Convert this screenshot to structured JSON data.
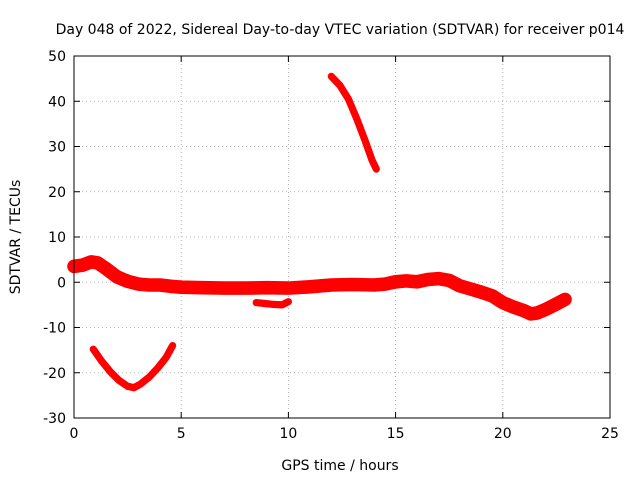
{
  "chart_data": {
    "type": "line",
    "title": "Day 048 of 2022, Sidereal Day-to-day VTEC variation (SDTVAR) for receiver p014",
    "xlabel": "GPS time / hours",
    "ylabel": "SDTVAR / TECUs",
    "xlim": [
      0,
      25
    ],
    "ylim": [
      -30,
      50
    ],
    "xticks": [
      0,
      5,
      10,
      15,
      20,
      25
    ],
    "yticks": [
      -30,
      -20,
      -10,
      0,
      10,
      20,
      30,
      40,
      50
    ],
    "grid": true,
    "color": "#ff0000",
    "series": [
      {
        "name": "main",
        "thickness": 3,
        "points": [
          [
            0,
            3.5
          ],
          [
            0.4,
            3.8
          ],
          [
            0.8,
            4.5
          ],
          [
            1.1,
            4.3
          ],
          [
            1.5,
            3.0
          ],
          [
            2.0,
            1.2
          ],
          [
            2.5,
            0.2
          ],
          [
            3.0,
            -0.4
          ],
          [
            3.5,
            -0.6
          ],
          [
            4.0,
            -0.6
          ],
          [
            4.5,
            -0.9
          ],
          [
            5.0,
            -1.1
          ],
          [
            6.0,
            -1.2
          ],
          [
            7.0,
            -1.3
          ],
          [
            8.0,
            -1.3
          ],
          [
            9.0,
            -1.2
          ],
          [
            10.0,
            -1.3
          ],
          [
            11.0,
            -1.0
          ],
          [
            12.0,
            -0.6
          ],
          [
            13.0,
            -0.5
          ],
          [
            14.0,
            -0.6
          ],
          [
            14.5,
            -0.4
          ],
          [
            15.0,
            0.1
          ],
          [
            15.5,
            0.3
          ],
          [
            16.0,
            0.1
          ],
          [
            16.5,
            0.6
          ],
          [
            17.0,
            0.8
          ],
          [
            17.5,
            0.4
          ],
          [
            18.0,
            -0.8
          ],
          [
            18.5,
            -1.5
          ],
          [
            19.0,
            -2.2
          ],
          [
            19.5,
            -3.0
          ],
          [
            20.0,
            -4.5
          ],
          [
            20.5,
            -5.5
          ],
          [
            21.0,
            -6.3
          ],
          [
            21.3,
            -7.0
          ],
          [
            21.6,
            -6.8
          ],
          [
            22.0,
            -6.0
          ],
          [
            22.5,
            -4.8
          ],
          [
            22.9,
            -3.8
          ]
        ]
      },
      {
        "name": "arc-low",
        "thickness": 1.6,
        "points": [
          [
            0.9,
            -14.8
          ],
          [
            1.3,
            -17.5
          ],
          [
            1.7,
            -19.8
          ],
          [
            2.1,
            -21.7
          ],
          [
            2.5,
            -23.0
          ],
          [
            2.8,
            -23.3
          ],
          [
            3.1,
            -22.5
          ],
          [
            3.5,
            -21.0
          ],
          [
            3.9,
            -19.0
          ],
          [
            4.3,
            -16.6
          ],
          [
            4.6,
            -14.0
          ]
        ]
      },
      {
        "name": "segment-9h",
        "thickness": 1.6,
        "points": [
          [
            8.5,
            -4.5
          ],
          [
            8.9,
            -4.7
          ],
          [
            9.3,
            -4.9
          ],
          [
            9.7,
            -5.0
          ],
          [
            10.0,
            -4.3
          ]
        ]
      },
      {
        "name": "descent",
        "thickness": 1.6,
        "points": [
          [
            12.0,
            45.5
          ],
          [
            12.4,
            43.5
          ],
          [
            12.8,
            40.5
          ],
          [
            13.2,
            36.0
          ],
          [
            13.6,
            31.0
          ],
          [
            13.9,
            27.0
          ],
          [
            14.1,
            25.0
          ]
        ]
      }
    ]
  }
}
